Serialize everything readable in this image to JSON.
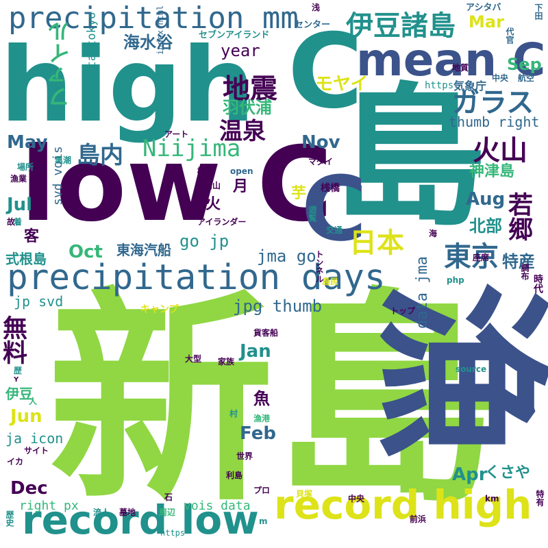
{
  "palette": {
    "dark_purple": "#440154",
    "indigo": "#3b528b",
    "blue": "#31688e",
    "teal": "#21918c",
    "green": "#35b779",
    "light_green": "#90d743",
    "yellow": "#dde318"
  },
  "words": [
    {
      "t": "新島",
      "c": "light_green"
    },
    {
      "t": "島",
      "c": "teal"
    },
    {
      "t": "high",
      "c": "teal"
    },
    {
      "t": "low C",
      "c": "dark_purple"
    },
    {
      "t": "C",
      "c": "teal"
    },
    {
      "t": "mean C",
      "c": "indigo"
    },
    {
      "t": "C",
      "c": "indigo"
    },
    {
      "t": "precipitation days",
      "c": "blue"
    },
    {
      "t": "precipitation mm",
      "c": "blue"
    },
    {
      "t": "record low",
      "c": "teal"
    },
    {
      "t": "record high",
      "c": "yellow"
    },
    {
      "t": "漁",
      "c": "indigo"
    },
    {
      "t": "無料",
      "c": "dark_purple"
    },
    {
      "t": "伊豆諸島",
      "c": "teal"
    },
    {
      "t": "地震",
      "c": "dark_purple"
    },
    {
      "t": "ガラス",
      "c": "blue"
    },
    {
      "t": "火山",
      "c": "dark_purple"
    },
    {
      "t": "東京",
      "c": "blue"
    },
    {
      "t": "日本",
      "c": "yellow"
    },
    {
      "t": "若郷",
      "c": "dark_purple"
    },
    {
      "t": "温泉",
      "c": "dark_purple"
    },
    {
      "t": "島内",
      "c": "blue"
    },
    {
      "t": "ファイル",
      "c": "green"
    },
    {
      "t": "Niijima",
      "c": "green"
    },
    {
      "t": "海水浴",
      "c": "blue"
    },
    {
      "t": "モヤイ",
      "c": "yellow"
    },
    {
      "t": "羽伏浦",
      "c": "green"
    },
    {
      "t": "神津島",
      "c": "green"
    },
    {
      "t": "特産",
      "c": "blue"
    },
    {
      "t": "北部",
      "c": "teal"
    },
    {
      "t": "東海汽船",
      "c": "blue"
    },
    {
      "t": "式根島",
      "c": "teal"
    },
    {
      "t": "year",
      "c": "dark_purple"
    },
    {
      "t": "Mar",
      "c": "yellow"
    },
    {
      "t": "Sep",
      "c": "green"
    },
    {
      "t": "May",
      "c": "blue"
    },
    {
      "t": "Nov",
      "c": "blue"
    },
    {
      "t": "Jul",
      "c": "teal"
    },
    {
      "t": "Aug",
      "c": "blue"
    },
    {
      "t": "Oct",
      "c": "green"
    },
    {
      "t": "Jan",
      "c": "teal"
    },
    {
      "t": "Feb",
      "c": "blue"
    },
    {
      "t": "Jun",
      "c": "yellow"
    },
    {
      "t": "Dec",
      "c": "dark_purple"
    },
    {
      "t": "Apr",
      "c": "teal"
    },
    {
      "t": "go jp",
      "c": "teal"
    },
    {
      "t": "jma go",
      "c": "blue"
    },
    {
      "t": "jpg thumb",
      "c": "blue"
    },
    {
      "t": "data jma",
      "c": "blue"
    },
    {
      "t": "thumb right",
      "c": "blue"
    },
    {
      "t": "svd vois",
      "c": "blue"
    },
    {
      "t": "jp svd",
      "c": "teal"
    },
    {
      "t": "data tokyo",
      "c": "teal"
    },
    {
      "t": "ja icon",
      "c": "teal"
    },
    {
      "t": "right px",
      "c": "green"
    },
    {
      "t": "vois data",
      "c": "green"
    },
    {
      "t": "index html",
      "c": "blue"
    },
    {
      "t": "https",
      "c": "teal"
    },
    {
      "t": "https",
      "c": "teal"
    },
    {
      "t": "月",
      "c": "dark_purple"
    },
    {
      "t": "火",
      "c": "dark_purple"
    },
    {
      "t": "芋",
      "c": "yellow"
    },
    {
      "t": "客",
      "c": "dark_purple"
    },
    {
      "t": "魚",
      "c": "dark_purple"
    },
    {
      "t": "くさや",
      "c": "teal"
    },
    {
      "t": "伊豆",
      "c": "green"
    },
    {
      "t": "気象庁",
      "c": "blue"
    },
    {
      "t": "セブンアイランド",
      "c": "teal"
    },
    {
      "t": "センター",
      "c": "blue"
    },
    {
      "t": "アシタバ",
      "c": "blue"
    },
    {
      "t": "下田",
      "c": "blue"
    },
    {
      "t": "代官",
      "c": "blue"
    },
    {
      "t": "航空",
      "c": "blue"
    },
    {
      "t": "中央",
      "c": "blue"
    },
    {
      "t": "地質",
      "c": "dark_purple"
    },
    {
      "t": "浅",
      "c": "dark_purple"
    },
    {
      "t": "歴",
      "c": "teal"
    },
    {
      "t": "アート",
      "c": "dark_purple"
    },
    {
      "t": "黒潮",
      "c": "teal"
    },
    {
      "t": "場所",
      "c": "teal"
    },
    {
      "t": "漁業",
      "c": "dark_purple"
    },
    {
      "t": "機材",
      "c": "dark_purple"
    },
    {
      "t": "マダイ",
      "c": "dark_purple"
    },
    {
      "t": "open",
      "c": "blue"
    },
    {
      "t": "向山",
      "c": "dark_purple"
    },
    {
      "t": "桟橋",
      "c": "dark_purple"
    },
    {
      "t": "遊覧",
      "c": "teal"
    },
    {
      "t": "アイランダー",
      "c": "dark_purple"
    },
    {
      "t": "交通",
      "c": "teal"
    },
    {
      "t": "海",
      "c": "dark_purple"
    },
    {
      "t": "トンネル",
      "c": "dark_purple"
    },
    {
      "t": "座席",
      "c": "dark_purple"
    },
    {
      "t": "島民",
      "c": "yellow"
    },
    {
      "t": "php",
      "c": "teal"
    },
    {
      "t": "調布",
      "c": "dark_purple"
    },
    {
      "t": "時代",
      "c": "dark_purple"
    },
    {
      "t": "故",
      "c": "dark_purple"
    },
    {
      "t": "着",
      "c": "teal"
    },
    {
      "t": "キャンプ",
      "c": "yellow"
    },
    {
      "t": "トップ",
      "c": "dark_purple"
    },
    {
      "t": "貨客船",
      "c": "dark_purple"
    },
    {
      "t": "大型",
      "c": "dark_purple"
    },
    {
      "t": "家族",
      "c": "dark_purple"
    },
    {
      "t": "source",
      "c": "teal"
    },
    {
      "t": "人",
      "c": "green"
    },
    {
      "t": "村",
      "c": "teal"
    },
    {
      "t": "漁港",
      "c": "green"
    },
    {
      "t": "サイト",
      "c": "dark_purple"
    },
    {
      "t": "イカ",
      "c": "dark_purple"
    },
    {
      "t": "世界",
      "c": "dark_purple"
    },
    {
      "t": "利島",
      "c": "dark_purple"
    },
    {
      "t": "プロ",
      "c": "dark_purple"
    },
    {
      "t": "石",
      "c": "dark_purple"
    },
    {
      "t": "貝塚",
      "c": "yellow"
    },
    {
      "t": "km",
      "c": "dark_purple"
    },
    {
      "t": "中央",
      "c": "dark_purple"
    },
    {
      "t": "周辺",
      "c": "green"
    },
    {
      "t": "流人",
      "c": "teal"
    },
    {
      "t": "墓地",
      "c": "dark_purple"
    },
    {
      "t": "前浜",
      "c": "dark_purple"
    },
    {
      "t": "特有",
      "c": "dark_purple"
    },
    {
      "t": "歴史",
      "c": "teal"
    },
    {
      "t": "m",
      "c": "teal"
    },
    {
      "t": "Y",
      "c": "dark_purple"
    }
  ]
}
